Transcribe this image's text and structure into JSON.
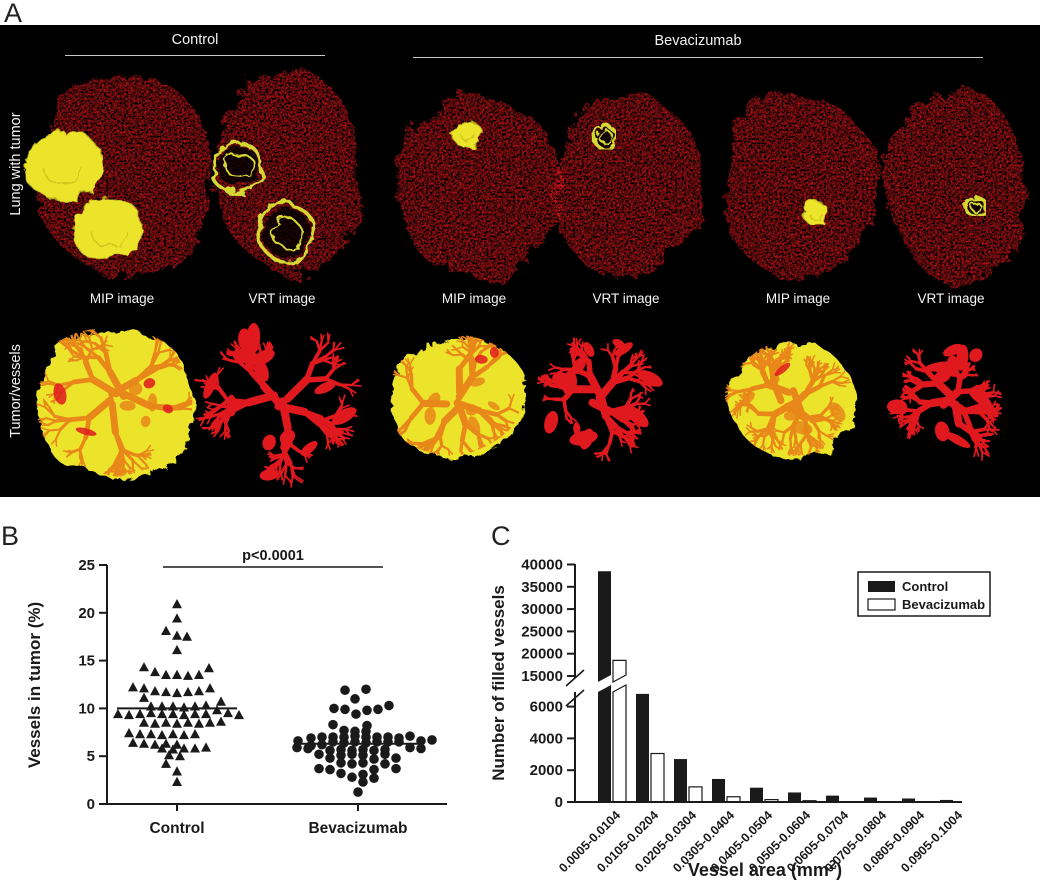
{
  "figure": {
    "panel_a": {
      "label": "A",
      "row_labels": [
        "Lung with tumor",
        "Tumor/vessels"
      ],
      "group_headers": [
        {
          "label": "Control"
        },
        {
          "label": "Bevacizumab"
        }
      ],
      "column_captions": [
        "MIP image",
        "VRT image",
        "MIP image",
        "VRT image",
        "MIP image",
        "VRT image"
      ],
      "colors": {
        "background": "#000000",
        "vessel_red": "#e0191f",
        "tumor_yellow": "#ece42a",
        "tumor_ring_yellow": "#d6d832",
        "vessel_orange": "#e8871a"
      }
    },
    "panel_b": {
      "label": "B"
    },
    "panel_c": {
      "label": "C"
    }
  },
  "chart_data": [
    {
      "panel": "B",
      "type": "scatter",
      "ylabel": "Vessels in tumor (%)",
      "ylim": [
        0,
        25
      ],
      "yticks": [
        0,
        5,
        10,
        15,
        20,
        25
      ],
      "categories": [
        "Control",
        "Bevacizumab"
      ],
      "significance": {
        "text": "p<0.0001"
      },
      "marker_color": "#1a1a1a",
      "series": [
        {
          "name": "Control",
          "marker": "triangle",
          "mean": 10.0,
          "points": [
            [
              0,
              20.9
            ],
            [
              0,
              19.4
            ],
            [
              -11,
              18.1
            ],
            [
              0,
              17.6
            ],
            [
              10,
              17.5
            ],
            [
              0,
              16.1
            ],
            [
              -33,
              14.3
            ],
            [
              32,
              14.2
            ],
            [
              -22,
              13.8
            ],
            [
              -11,
              13.5
            ],
            [
              0,
              13.5
            ],
            [
              11,
              13.4
            ],
            [
              22,
              13.5
            ],
            [
              -44,
              12.2
            ],
            [
              -33,
              12.1
            ],
            [
              33,
              12.1
            ],
            [
              -22,
              11.8
            ],
            [
              -11,
              11.7
            ],
            [
              0,
              11.6
            ],
            [
              11,
              11.7
            ],
            [
              22,
              11.8
            ],
            [
              -33,
              11.1
            ],
            [
              44,
              10.7
            ],
            [
              -26,
              10.2
            ],
            [
              -15,
              10.2
            ],
            [
              -4,
              10.2
            ],
            [
              7,
              10.1
            ],
            [
              18,
              10.2
            ],
            [
              29,
              10.3
            ],
            [
              -59,
              9.4
            ],
            [
              -48,
              9.3
            ],
            [
              -37,
              9.4
            ],
            [
              -26,
              9.5
            ],
            [
              -15,
              9.4
            ],
            [
              -4,
              9.4
            ],
            [
              7,
              9.3
            ],
            [
              18,
              9.4
            ],
            [
              29,
              9.4
            ],
            [
              40,
              9.8
            ],
            [
              51,
              9.5
            ],
            [
              62,
              9.3
            ],
            [
              -33,
              8.5
            ],
            [
              -22,
              8.4
            ],
            [
              -11,
              8.5
            ],
            [
              0,
              8.4
            ],
            [
              11,
              8.5
            ],
            [
              22,
              8.4
            ],
            [
              33,
              8.5
            ],
            [
              44,
              8.6
            ],
            [
              -48,
              7.4
            ],
            [
              -37,
              7.3
            ],
            [
              -26,
              7.3
            ],
            [
              -15,
              7.2
            ],
            [
              -4,
              7.3
            ],
            [
              7,
              7.2
            ],
            [
              18,
              7.3
            ],
            [
              -44,
              6.4
            ],
            [
              -33,
              6.3
            ],
            [
              -22,
              6.2
            ],
            [
              -11,
              6.3
            ],
            [
              0,
              6.2
            ],
            [
              -15,
              5.8
            ],
            [
              -4,
              5.7
            ],
            [
              7,
              5.8
            ],
            [
              18,
              5.8
            ],
            [
              29,
              5.9
            ],
            [
              -8,
              5.1
            ],
            [
              3,
              5.0
            ],
            [
              -11,
              4.2
            ],
            [
              0,
              3.4
            ],
            [
              0,
              2.3
            ]
          ]
        },
        {
          "name": "Bevacizumab",
          "marker": "circle",
          "mean": 6.3,
          "points": [
            [
              -13,
              11.9
            ],
            [
              8,
              12.0
            ],
            [
              -3,
              11.0
            ],
            [
              -24,
              10.0
            ],
            [
              -13,
              9.9
            ],
            [
              20,
              9.9
            ],
            [
              31,
              10.3
            ],
            [
              -2,
              9.4
            ],
            [
              9,
              9.8
            ],
            [
              -25,
              8.3
            ],
            [
              9,
              8.2
            ],
            [
              -14,
              7.7
            ],
            [
              -3,
              7.6
            ],
            [
              8,
              7.6
            ],
            [
              -47,
              6.9
            ],
            [
              -36,
              7.0
            ],
            [
              -25,
              7.0
            ],
            [
              -14,
              7.0
            ],
            [
              -3,
              7.1
            ],
            [
              8,
              7.0
            ],
            [
              19,
              7.0
            ],
            [
              30,
              7.0
            ],
            [
              41,
              6.9
            ],
            [
              52,
              7.1
            ],
            [
              -60,
              6.6
            ],
            [
              63,
              6.6
            ],
            [
              74,
              6.7
            ],
            [
              -25,
              6.5
            ],
            [
              -14,
              6.4
            ],
            [
              -3,
              6.5
            ],
            [
              8,
              6.4
            ],
            [
              19,
              6.5
            ],
            [
              30,
              6.5
            ],
            [
              41,
              6.5
            ],
            [
              -47,
              6.1
            ],
            [
              -36,
              6.2
            ],
            [
              -61,
              5.9
            ],
            [
              -50,
              5.8
            ],
            [
              52,
              5.9
            ],
            [
              63,
              5.8
            ],
            [
              -28,
              5.6
            ],
            [
              -17,
              5.7
            ],
            [
              -6,
              5.6
            ],
            [
              5,
              5.7
            ],
            [
              16,
              5.6
            ],
            [
              27,
              5.7
            ],
            [
              -39,
              5.2
            ],
            [
              -17,
              5.1
            ],
            [
              -6,
              5.2
            ],
            [
              5,
              5.1
            ],
            [
              27,
              5.2
            ],
            [
              -28,
              4.8
            ],
            [
              16,
              4.7
            ],
            [
              38,
              4.8
            ],
            [
              -17,
              4.3
            ],
            [
              -6,
              4.2
            ],
            [
              5,
              4.3
            ],
            [
              27,
              4.2
            ],
            [
              -39,
              3.7
            ],
            [
              -28,
              3.6
            ],
            [
              16,
              3.6
            ],
            [
              38,
              3.7
            ],
            [
              -17,
              3.2
            ],
            [
              5,
              3.1
            ],
            [
              -6,
              2.8
            ],
            [
              16,
              2.7
            ],
            [
              5,
              2.3
            ],
            [
              0,
              1.25
            ]
          ]
        }
      ]
    },
    {
      "panel": "C",
      "type": "bar",
      "ylabel": "Number of filled vessels",
      "xlabel_prefix": "Vessel area (mm",
      "xlabel_sup": "2",
      "xlabel_suffix": ")",
      "axis_break": {
        "lower_segment": [
          0,
          6900
        ],
        "upper_segment": [
          15000,
          40000
        ]
      },
      "yticks_lower": [
        0,
        2000,
        4000,
        6000
      ],
      "yticks_upper": [
        15000,
        20000,
        25000,
        30000,
        35000,
        40000
      ],
      "categories": [
        "0.0005-0.0104",
        "0.0105-0.0204",
        "0.0205-0.0304",
        "0.0305-0.0404",
        "0.0405-0.0504",
        "0.0505-0.0604",
        "0.0605-0.0704",
        "0.0705-0.0804",
        "0.0805-0.0904",
        "0.0905-0.1004"
      ],
      "legend_position": "top-right",
      "series": [
        {
          "name": "Control",
          "fill": "#1a1a1a",
          "values": [
            38500,
            6800,
            2700,
            1450,
            900,
            600,
            400,
            280,
            220,
            130
          ]
        },
        {
          "name": "Bevacizumab",
          "fill": "#ffffff",
          "values": [
            18500,
            3050,
            950,
            330,
            150,
            80,
            0,
            0,
            0,
            0
          ]
        }
      ]
    }
  ]
}
